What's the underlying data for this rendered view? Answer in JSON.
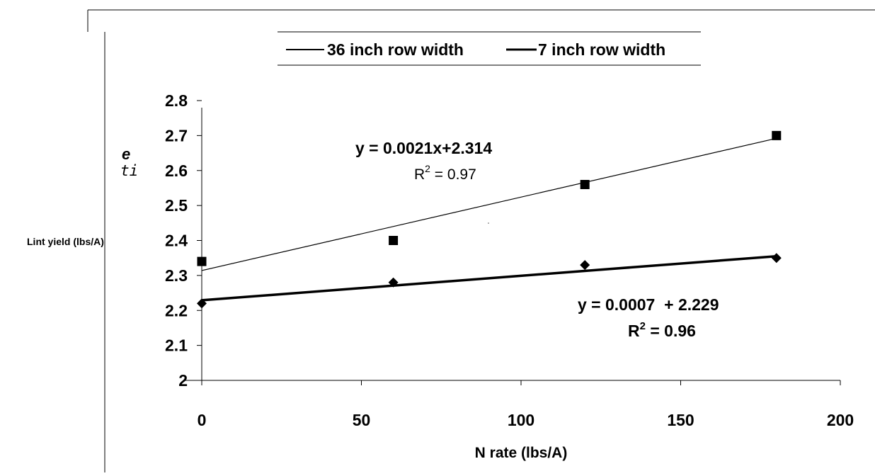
{
  "chart_data": {
    "type": "scatter",
    "xlabel": "N rate (lbs/A)",
    "ylabel": "Lint yield (lbs/A)",
    "xlim": [
      0,
      200
    ],
    "ylim": [
      2,
      2.8
    ],
    "x_ticks": [
      "0",
      "50",
      "100",
      "150",
      "200"
    ],
    "y_ticks": [
      "2",
      "2.1",
      "2.2",
      "2.3",
      "2.4",
      "2.5",
      "2.6",
      "2.7",
      "2.8"
    ],
    "x_tick_values": [
      0,
      50,
      100,
      150,
      200
    ],
    "y_tick_values": [
      2,
      2.1,
      2.2,
      2.3,
      2.4,
      2.5,
      2.6,
      2.7,
      2.8
    ],
    "grid": false,
    "legend_position": "top",
    "series": [
      {
        "name": "36 inch row width",
        "marker": "square",
        "x": [
          0,
          60,
          120,
          180
        ],
        "y": [
          2.34,
          2.4,
          2.56,
          2.7
        ],
        "trendline": {
          "slope": 0.0021,
          "intercept": 2.314,
          "x_range": [
            0,
            180
          ],
          "thickness": "thin"
        },
        "equation": "y = 0.0021x+2.314",
        "r2_label": "R",
        "r2_sup": "2",
        "r2_value": " = 0.97"
      },
      {
        "name": "7 inch row width",
        "marker": "diamond",
        "x": [
          0,
          60,
          120,
          180
        ],
        "y": [
          2.22,
          2.28,
          2.33,
          2.35
        ],
        "trendline": {
          "slope": 0.0007,
          "intercept": 2.229,
          "x_range": [
            0,
            180
          ],
          "thickness": "thick"
        },
        "equation": "y = 0.0007  + 2.229",
        "r2_label": "R",
        "r2_sup": "2",
        "r2_value": " = 0.96"
      }
    ],
    "stray_label_top": "e",
    "stray_label_bottom": "ti"
  }
}
